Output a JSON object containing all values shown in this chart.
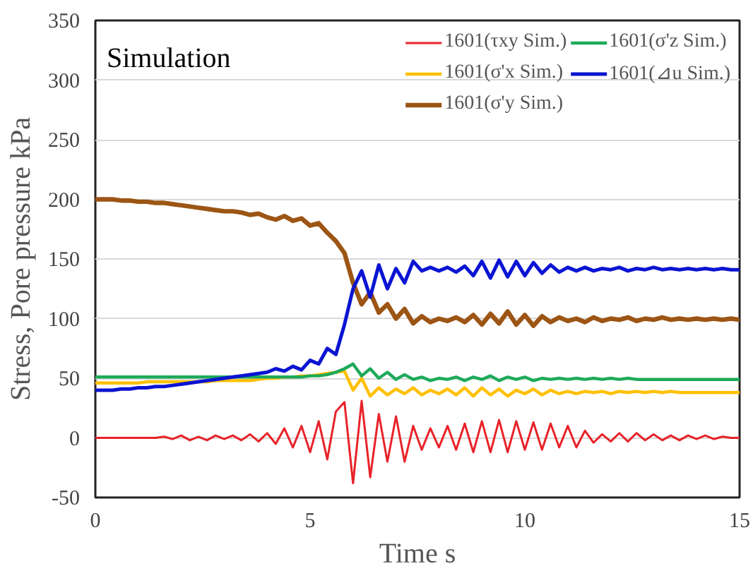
{
  "chart_data": {
    "type": "line",
    "title": "Simulation",
    "xlabel": "Time s",
    "ylabel": "Stress, Pore pressure kPa",
    "xlim": [
      0,
      15
    ],
    "xticks": [
      0,
      5,
      10,
      15
    ],
    "ylim": [
      -50,
      350
    ],
    "yticks": [
      -50,
      0,
      50,
      100,
      150,
      200,
      250,
      300,
      350
    ],
    "grid": "y",
    "legend": "top right",
    "line_style": "solid",
    "marker": "none",
    "x": [
      0,
      0.2,
      0.4,
      0.6,
      0.8,
      1.0,
      1.2,
      1.4,
      1.6,
      1.8,
      2.0,
      2.2,
      2.4,
      2.6,
      2.8,
      3.0,
      3.2,
      3.4,
      3.6,
      3.8,
      4.0,
      4.2,
      4.4,
      4.6,
      4.8,
      5.0,
      5.2,
      5.4,
      5.6,
      5.8,
      6.0,
      6.2,
      6.4,
      6.6,
      6.8,
      7.0,
      7.2,
      7.4,
      7.6,
      7.8,
      8.0,
      8.2,
      8.4,
      8.6,
      8.8,
      9.0,
      9.2,
      9.4,
      9.6,
      9.8,
      10.0,
      10.2,
      10.4,
      10.6,
      10.8,
      11.0,
      11.2,
      11.4,
      11.6,
      11.8,
      12.0,
      12.2,
      12.4,
      12.6,
      12.8,
      13.0,
      13.2,
      13.4,
      13.6,
      13.8,
      14.0,
      14.2,
      14.4,
      14.6,
      14.8,
      15.0
    ],
    "series": [
      {
        "name": "1601(τxy Sim.)",
        "color": "#e8232a",
        "values": [
          0,
          0,
          0,
          0,
          0,
          0,
          0,
          0,
          1,
          -1,
          2,
          -2,
          1,
          -2,
          2,
          -1,
          2,
          -2,
          3,
          -3,
          4,
          -5,
          8,
          -8,
          10,
          -12,
          14,
          -18,
          22,
          30,
          -38,
          31,
          -33,
          20,
          -20,
          18,
          -20,
          10,
          -10,
          8,
          -8,
          10,
          -10,
          12,
          -12,
          14,
          -12,
          15,
          -12,
          14,
          -10,
          13,
          -10,
          12,
          -8,
          10,
          -8,
          6,
          -4,
          3,
          -3,
          4,
          -3,
          4,
          -2,
          3,
          -2,
          2,
          -2,
          2,
          -1,
          2,
          -1,
          1,
          0,
          0
        ]
      },
      {
        "name": "1601(σ'x Sim.)",
        "color": "#ffc000",
        "values": [
          46,
          46,
          46,
          46,
          46,
          46,
          47,
          47,
          47,
          47,
          47,
          47,
          47,
          47,
          48,
          48,
          48,
          48,
          48,
          49,
          50,
          50,
          51,
          51,
          52,
          52,
          53,
          54,
          55,
          56,
          40,
          50,
          35,
          42,
          36,
          41,
          37,
          42,
          36,
          40,
          37,
          41,
          36,
          42,
          35,
          42,
          36,
          41,
          35,
          40,
          37,
          41,
          36,
          40,
          37,
          39,
          37,
          39,
          38,
          39,
          37,
          39,
          38,
          39,
          38,
          39,
          38,
          39,
          38,
          38,
          38,
          38,
          38,
          38,
          38,
          38
        ]
      },
      {
        "name": "1601(σ'y Sim.)",
        "color": "#9c5514",
        "values": [
          200,
          200,
          200,
          199,
          199,
          198,
          198,
          197,
          197,
          196,
          195,
          194,
          193,
          192,
          191,
          190,
          190,
          189,
          187,
          188,
          185,
          183,
          186,
          182,
          184,
          178,
          180,
          172,
          165,
          155,
          130,
          112,
          122,
          105,
          112,
          100,
          108,
          96,
          102,
          97,
          100,
          98,
          101,
          97,
          103,
          95,
          104,
          96,
          106,
          95,
          103,
          94,
          102,
          97,
          101,
          98,
          100,
          97,
          101,
          98,
          100,
          99,
          101,
          98,
          100,
          99,
          101,
          99,
          100,
          99,
          100,
          99,
          100,
          99,
          100,
          99
        ]
      },
      {
        "name": "1601(σ'z Sim.)",
        "color": "#1eaa5a",
        "values": [
          51,
          51,
          51,
          51,
          51,
          51,
          51,
          51,
          51,
          51,
          51,
          51,
          51,
          51,
          51,
          51,
          51,
          51,
          51,
          51,
          51,
          51,
          51,
          51,
          51,
          52,
          52,
          53,
          55,
          58,
          62,
          52,
          58,
          50,
          55,
          49,
          53,
          49,
          51,
          48,
          50,
          49,
          51,
          48,
          51,
          49,
          52,
          48,
          51,
          49,
          51,
          48,
          50,
          49,
          50,
          49,
          50,
          49,
          50,
          49,
          50,
          49,
          50,
          49,
          49,
          49,
          49,
          49,
          49,
          49,
          49,
          49,
          49,
          49,
          49,
          49
        ]
      },
      {
        "name": "1601(⊿u Sim.)",
        "color": "#0a14d2",
        "values": [
          40,
          40,
          40,
          41,
          41,
          42,
          42,
          43,
          43,
          44,
          45,
          46,
          47,
          48,
          49,
          50,
          51,
          52,
          53,
          54,
          55,
          58,
          56,
          60,
          57,
          65,
          62,
          75,
          70,
          95,
          125,
          140,
          118,
          145,
          125,
          142,
          130,
          148,
          140,
          143,
          140,
          143,
          139,
          144,
          136,
          148,
          134,
          149,
          135,
          148,
          136,
          147,
          138,
          145,
          139,
          143,
          140,
          143,
          140,
          142,
          141,
          143,
          140,
          142,
          141,
          143,
          141,
          142,
          141,
          142,
          141,
          142,
          141,
          142,
          141,
          141
        ]
      }
    ]
  }
}
